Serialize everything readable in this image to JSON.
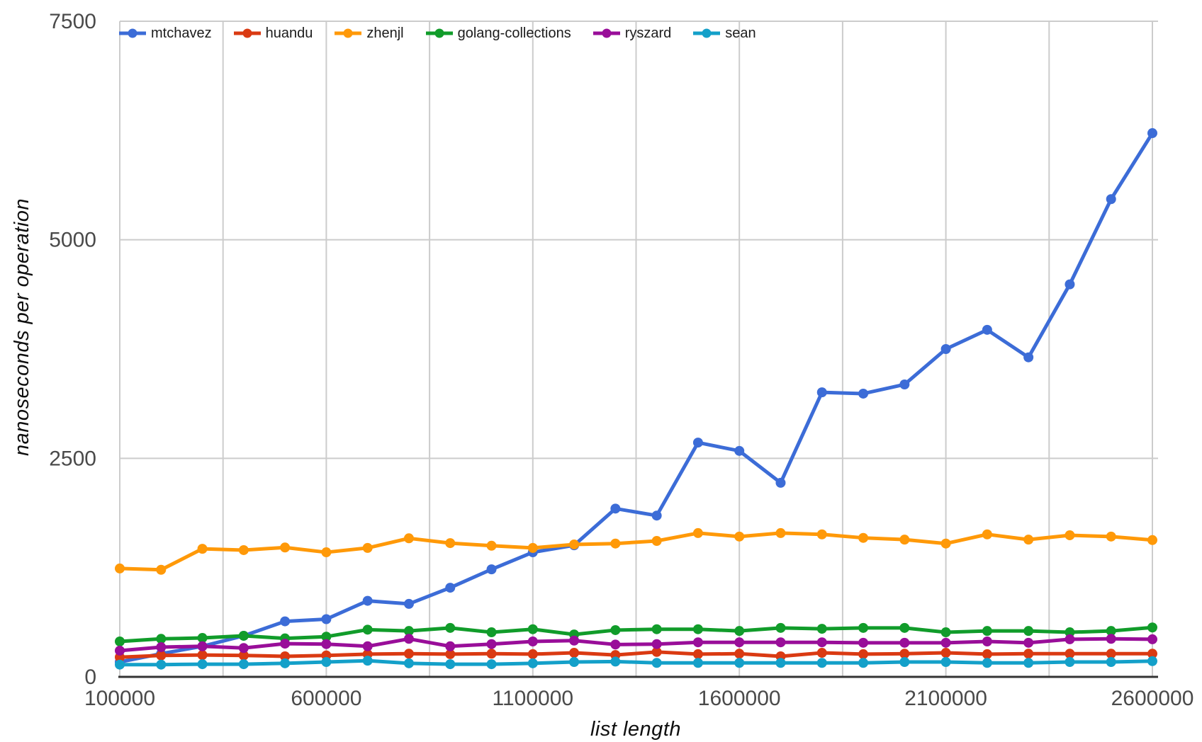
{
  "chart_data": {
    "type": "line",
    "title": "",
    "xlabel": "list length",
    "ylabel": "nanoseconds per operation",
    "x": [
      100000,
      200000,
      300000,
      400000,
      500000,
      600000,
      700000,
      800000,
      900000,
      1000000,
      1100000,
      1200000,
      1300000,
      1400000,
      1500000,
      1600000,
      1700000,
      1800000,
      1900000,
      2000000,
      2100000,
      2200000,
      2300000,
      2400000,
      2500000,
      2600000
    ],
    "series": [
      {
        "name": "mtchavez",
        "color": "#3C6CD7",
        "values": [
          170,
          265,
          350,
          470,
          635,
          660,
          870,
          835,
          1020,
          1230,
          1425,
          1505,
          1925,
          1845,
          2680,
          2585,
          2220,
          3255,
          3240,
          3345,
          3750,
          3970,
          3655,
          4490,
          5465,
          6220
        ]
      },
      {
        "name": "huandu",
        "color": "#DA3A12",
        "values": [
          225,
          245,
          250,
          245,
          235,
          245,
          260,
          265,
          260,
          265,
          260,
          275,
          250,
          285,
          260,
          265,
          235,
          275,
          260,
          265,
          275,
          260,
          265,
          265,
          265,
          265
        ]
      },
      {
        "name": "zhenjl",
        "color": "#FF9908",
        "values": [
          1240,
          1225,
          1465,
          1450,
          1480,
          1425,
          1475,
          1585,
          1530,
          1500,
          1475,
          1515,
          1525,
          1555,
          1645,
          1605,
          1645,
          1630,
          1590,
          1570,
          1525,
          1630,
          1570,
          1620,
          1605,
          1565
        ]
      },
      {
        "name": "golang-collections",
        "color": "#119C2A",
        "values": [
          405,
          435,
          445,
          470,
          440,
          460,
          540,
          525,
          560,
          510,
          545,
          485,
          535,
          545,
          545,
          525,
          560,
          550,
          560,
          560,
          510,
          525,
          525,
          510,
          525,
          565
        ]
      },
      {
        "name": "ryszard",
        "color": "#990E99",
        "values": [
          300,
          340,
          350,
          330,
          380,
          375,
          350,
          435,
          350,
          375,
          405,
          415,
          370,
          375,
          395,
          395,
          395,
          395,
          390,
          390,
          390,
          405,
          390,
          430,
          435,
          430
        ]
      },
      {
        "name": "sean",
        "color": "#14A0C9",
        "values": [
          140,
          140,
          145,
          145,
          155,
          170,
          185,
          155,
          145,
          145,
          155,
          170,
          175,
          160,
          160,
          160,
          160,
          160,
          160,
          170,
          170,
          160,
          160,
          170,
          170,
          180
        ]
      }
    ],
    "x_ticks": [
      100000,
      600000,
      1100000,
      1600000,
      2100000,
      2600000
    ],
    "x_tick_labels": [
      "100000",
      "600000",
      "1100000",
      "1600000",
      "2100000",
      "2600000"
    ],
    "y_ticks": [
      0,
      2500,
      5000,
      7500
    ],
    "y_tick_labels": [
      "0",
      "2500",
      "5000",
      "7500"
    ],
    "xlim": [
      100000,
      2600000
    ],
    "ylim": [
      0,
      7500
    ],
    "x_grid_step": 250000,
    "grid": true,
    "legend_position": "top-left-inside",
    "grid_color": "#CCCCCC",
    "axis_line_color": "#333333",
    "tick_label_color": "#4A4A4A",
    "axis_title_color": "#0F0F0F"
  }
}
